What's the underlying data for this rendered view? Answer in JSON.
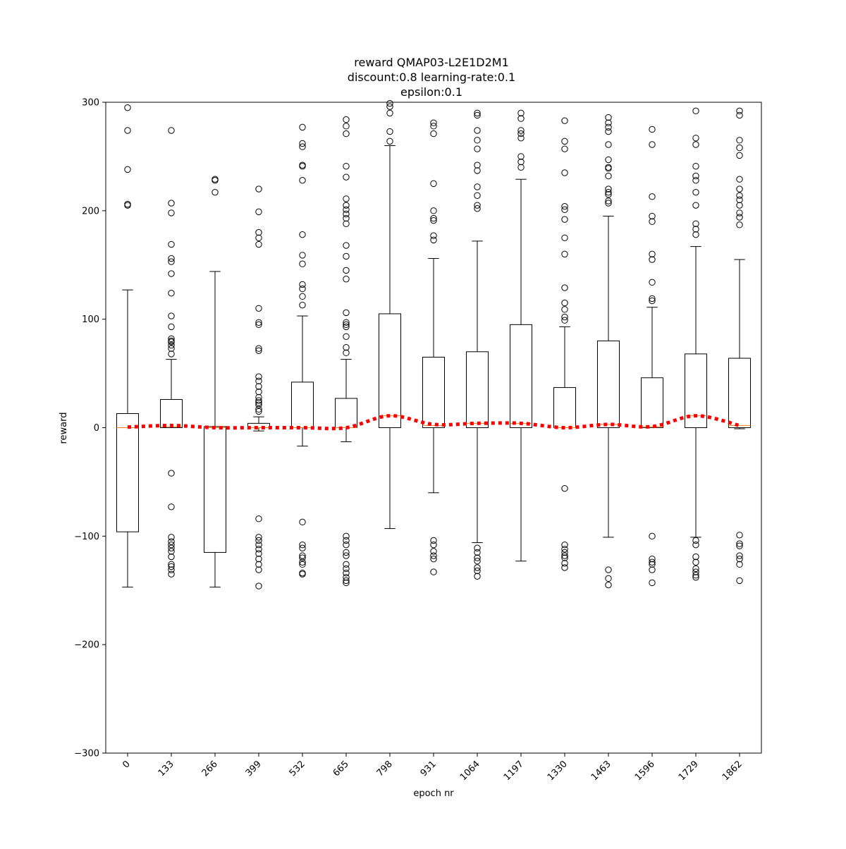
{
  "chart_data": {
    "type": "box",
    "title": [
      "reward QMAP03-L2E1D2M1",
      "discount:0.8 learning-rate:0.1",
      "epsilon:0.1"
    ],
    "xlabel": "epoch nr",
    "ylabel": "reward",
    "ylim": [
      -300,
      300
    ],
    "yticks": [
      -300,
      -200,
      -100,
      0,
      100,
      200,
      300
    ],
    "ytick_labels": [
      "−300",
      "−200",
      "−100",
      "0",
      "100",
      "200",
      "300"
    ],
    "categories": [
      "0",
      "133",
      "266",
      "399",
      "532",
      "665",
      "798",
      "931",
      "1064",
      "1197",
      "1330",
      "1463",
      "1596",
      "1729",
      "1862"
    ],
    "boxes": [
      {
        "label": "0",
        "whisker_low": -147,
        "q1": -96,
        "median": 0,
        "q3": 13,
        "whisker_high": 127,
        "outliers": [
          295,
          274,
          238,
          206,
          205
        ]
      },
      {
        "label": "133",
        "whisker_low": 0,
        "q1": 0,
        "median": 1,
        "q3": 26,
        "whisker_high": 63,
        "outliers": [
          274,
          207,
          198,
          169,
          156,
          153,
          142,
          124,
          103,
          93,
          82,
          80,
          79,
          76,
          73,
          68,
          -42,
          -73,
          -101,
          -105,
          -108,
          -111,
          -114,
          -119,
          -126,
          -128,
          -131,
          -135
        ]
      },
      {
        "label": "266",
        "whisker_low": -147,
        "q1": -115,
        "median": 0,
        "q3": 1,
        "whisker_high": 144,
        "outliers": [
          229,
          228,
          217
        ]
      },
      {
        "label": "399",
        "whisker_low": -3,
        "q1": 0,
        "median": 0,
        "q3": 4,
        "whisker_high": 10,
        "outliers": [
          220,
          199,
          180,
          175,
          169,
          110,
          97,
          95,
          73,
          71,
          47,
          43,
          38,
          33,
          28,
          25,
          23,
          21,
          17,
          15,
          -84,
          -101,
          -104,
          -108,
          -112,
          -116,
          -121,
          -126,
          -131,
          -146
        ]
      },
      {
        "label": "532",
        "whisker_low": -17,
        "q1": 0,
        "median": 0,
        "q3": 42,
        "whisker_high": 103,
        "outliers": [
          277,
          262,
          259,
          242,
          241,
          228,
          178,
          159,
          151,
          132,
          128,
          121,
          113,
          -87,
          -108,
          -111,
          -118,
          -120,
          -124,
          -126,
          -134,
          -135
        ]
      },
      {
        "label": "665",
        "whisker_low": -13,
        "q1": 0,
        "median": 0,
        "q3": 27,
        "whisker_high": 63,
        "outliers": [
          284,
          278,
          271,
          241,
          231,
          211,
          205,
          201,
          197,
          193,
          188,
          168,
          158,
          145,
          137,
          106,
          97,
          95,
          93,
          84,
          74,
          69,
          -100,
          -104,
          -108,
          -115,
          -118,
          -126,
          -130,
          -134,
          -138,
          -141,
          -143
        ]
      },
      {
        "label": "798",
        "whisker_low": -93,
        "q1": 0,
        "median": 11,
        "q3": 105,
        "whisker_high": 260,
        "outliers": [
          299,
          296,
          290,
          273,
          264
        ]
      },
      {
        "label": "931",
        "whisker_low": -60,
        "q1": 0,
        "median": 2,
        "q3": 65,
        "whisker_high": 156,
        "outliers": [
          281,
          278,
          271,
          225,
          200,
          193,
          191,
          177,
          173,
          -104,
          -108,
          -114,
          -118,
          -121,
          -133
        ]
      },
      {
        "label": "1064",
        "whisker_low": -106,
        "q1": 0,
        "median": 4,
        "q3": 70,
        "whisker_high": 172,
        "outliers": [
          290,
          288,
          274,
          265,
          257,
          242,
          237,
          222,
          214,
          205,
          202,
          -111,
          -115,
          -120,
          -123,
          -129,
          -132,
          -137
        ]
      },
      {
        "label": "1197",
        "whisker_low": -123,
        "q1": 0,
        "median": 4,
        "q3": 95,
        "whisker_high": 229,
        "outliers": [
          290,
          285,
          274,
          271,
          267,
          250,
          245,
          240
        ]
      },
      {
        "label": "1330",
        "whisker_low": 0,
        "q1": 0,
        "median": 0,
        "q3": 37,
        "whisker_high": 93,
        "outliers": [
          283,
          264,
          257,
          235,
          204,
          201,
          192,
          175,
          160,
          129,
          115,
          109,
          102,
          99,
          -56,
          -108,
          -112,
          -115,
          -118,
          -120,
          -125,
          -129
        ]
      },
      {
        "label": "1463",
        "whisker_low": -101,
        "q1": 0,
        "median": 3,
        "q3": 80,
        "whisker_high": 195,
        "outliers": [
          286,
          281,
          277,
          273,
          261,
          247,
          240,
          239,
          232,
          220,
          217,
          215,
          209,
          207,
          -131,
          -139,
          -145
        ]
      },
      {
        "label": "1596",
        "whisker_low": 0,
        "q1": 0,
        "median": 1,
        "q3": 46,
        "whisker_high": 111,
        "outliers": [
          275,
          261,
          213,
          195,
          190,
          160,
          155,
          134,
          119,
          117,
          -100,
          -121,
          -124,
          -126,
          -131,
          -143
        ]
      },
      {
        "label": "1729",
        "whisker_low": -101,
        "q1": 0,
        "median": 11,
        "q3": 68,
        "whisker_high": 167,
        "outliers": [
          292,
          267,
          261,
          241,
          232,
          228,
          217,
          205,
          188,
          183,
          178,
          -104,
          -108,
          -119,
          -124,
          -130,
          -133,
          -136,
          -138
        ]
      },
      {
        "label": "1862",
        "whisker_low": -1,
        "q1": 0,
        "median": 2,
        "q3": 64,
        "whisker_high": 155,
        "outliers": [
          292,
          288,
          265,
          258,
          251,
          229,
          220,
          214,
          210,
          205,
          198,
          194,
          187,
          -99,
          -107,
          -109,
          -118,
          -121,
          -126,
          -141
        ]
      }
    ],
    "mean_line": {
      "style": "dotted",
      "color": "#ff0000",
      "values": [
        0.5,
        2,
        0,
        0,
        0,
        0,
        11,
        3,
        4,
        4,
        0,
        3,
        1,
        11,
        2
      ]
    },
    "colors": {
      "box": "#000000",
      "median": "#ff7f0e",
      "mean_line": "#ff0000"
    },
    "grid": false,
    "legend": "none"
  }
}
